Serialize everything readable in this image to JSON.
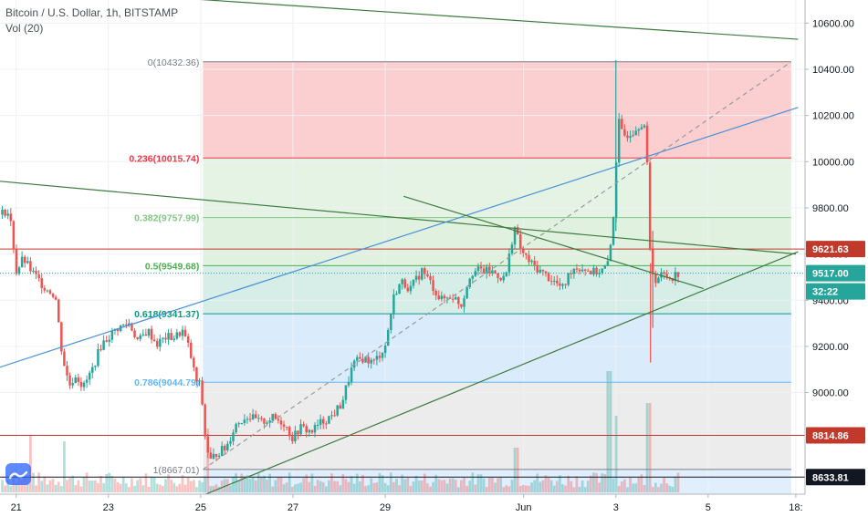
{
  "header": {
    "symbol_line": "Bitcoin / U.S. Dollar, 1h, BITSTAMP",
    "volume_line": "Vol (20)"
  },
  "icons": {
    "logo": "tradingview-cloud-icon"
  },
  "chart_data": {
    "type": "candlestick",
    "symbol": "Bitcoin / U.S. Dollar",
    "interval": "1h",
    "exchange": "BITSTAMP",
    "ylim": [
      8560,
      10700
    ],
    "y_ticks": [
      9000,
      9200,
      9400,
      9600,
      9800,
      10000,
      10200,
      10400,
      10600
    ],
    "y_tick_labels": [
      "9000.00",
      "9200.00",
      "9400.00",
      "9600.00",
      "9800.00",
      "10000.00",
      "10200.00",
      "10400.00",
      "10600.00"
    ],
    "x_labels": [
      {
        "text": "21",
        "day": 0
      },
      {
        "text": "23",
        "day": 2
      },
      {
        "text": "25",
        "day": 4
      },
      {
        "text": "27",
        "day": 6
      },
      {
        "text": "29",
        "day": 8
      },
      {
        "text": "Jun",
        "day": 11
      },
      {
        "text": "3",
        "day": 13
      },
      {
        "text": "5",
        "day": 15
      },
      {
        "text": "18:",
        "day": 16.9
      }
    ],
    "x_range_days": [
      -0.35,
      17.1
    ],
    "fibonacci": {
      "start_day": 4.05,
      "end_day": 16.8,
      "levels": [
        {
          "ratio": "0",
          "value": 10432.36,
          "label": "0(10432.36)",
          "color": "#787b86",
          "fill": "#f7a8a8"
        },
        {
          "ratio": "0.236",
          "value": 10015.74,
          "label": "0.236(10015.74)",
          "color": "#f23645",
          "fill": "#cfe9cf"
        },
        {
          "ratio": "0.382",
          "value": 9757.99,
          "label": "0.382(9757.99)",
          "color": "#81c784",
          "fill": "#c6e6c6"
        },
        {
          "ratio": "0.5",
          "value": 9549.68,
          "label": "0.5(9549.68)",
          "color": "#4caf50",
          "fill": "#b6e0d6"
        },
        {
          "ratio": "0.618",
          "value": 9341.37,
          "label": "0.618(9341.37)",
          "color": "#089981",
          "fill": "#bcdaf7"
        },
        {
          "ratio": "0.786",
          "value": 9044.79,
          "label": "0.786(9044.79)",
          "color": "#64b5f6",
          "fill": "#dcdcdc"
        },
        {
          "ratio": "1",
          "value": 8667.01,
          "label": "1(8667.01)",
          "color": "#787b86",
          "fill": "#c8e2fa"
        }
      ]
    },
    "horizontal_lines": [
      {
        "value": 9621.63,
        "label": "9621.63",
        "color": "#c0392b"
      },
      {
        "value": 8814.86,
        "label": "8814.86",
        "color": "#c0392b"
      },
      {
        "value": 8633.81,
        "label": "8633.81",
        "color": "#131722"
      }
    ],
    "last_price": {
      "value": 9517.0,
      "label": "9517.00",
      "countdown": "32:22",
      "color": "#26a69a"
    },
    "trend_lines": [
      {
        "name": "upper-descending-trendline",
        "color": "#3d7a3d",
        "points": [
          [
            -0.35,
            10760
          ],
          [
            16.95,
            10530
          ]
        ]
      },
      {
        "name": "mid-descending-trendline",
        "color": "#3d7a3d",
        "points": [
          [
            -0.35,
            9915
          ],
          [
            16.9,
            9600
          ]
        ]
      },
      {
        "name": "blue-ascending-trendline",
        "color": "#4a90d9",
        "points": [
          [
            -0.35,
            9110
          ],
          [
            16.95,
            10235
          ]
        ]
      },
      {
        "name": "lower-ascending-trendline",
        "color": "#3d7a3d",
        "points": [
          [
            3.5,
            8510
          ],
          [
            16.95,
            9610
          ]
        ]
      },
      {
        "name": "short-descending-trendline",
        "color": "#3d7a3d",
        "points": [
          [
            8.4,
            9850
          ],
          [
            14.9,
            9450
          ]
        ]
      },
      {
        "name": "fib-diagonal-dashed",
        "color": "#9a9a9a",
        "dashed": true,
        "points": [
          [
            4.05,
            8667.01
          ],
          [
            16.8,
            10432.36
          ]
        ]
      }
    ],
    "candle_anchors": [
      [
        -0.35,
        9770
      ],
      [
        -0.2,
        9790
      ],
      [
        -0.1,
        9720
      ],
      [
        0.0,
        9520
      ],
      [
        0.15,
        9580
      ],
      [
        0.35,
        9520
      ],
      [
        0.6,
        9460
      ],
      [
        0.85,
        9420
      ],
      [
        1.0,
        9160
      ],
      [
        1.15,
        9030
      ],
      [
        1.3,
        9080
      ],
      [
        1.45,
        9020
      ],
      [
        1.65,
        9100
      ],
      [
        1.85,
        9210
      ],
      [
        2.0,
        9240
      ],
      [
        2.2,
        9280
      ],
      [
        2.45,
        9300
      ],
      [
        2.65,
        9220
      ],
      [
        2.85,
        9270
      ],
      [
        3.05,
        9210
      ],
      [
        3.25,
        9240
      ],
      [
        3.45,
        9240
      ],
      [
        3.6,
        9270
      ],
      [
        3.75,
        9190
      ],
      [
        3.9,
        9050
      ],
      [
        4.0,
        9030
      ],
      [
        4.1,
        8800
      ],
      [
        4.2,
        8700
      ],
      [
        4.35,
        8740
      ],
      [
        4.55,
        8760
      ],
      [
        4.75,
        8860
      ],
      [
        5.0,
        8900
      ],
      [
        5.3,
        8870
      ],
      [
        5.55,
        8890
      ],
      [
        5.8,
        8870
      ],
      [
        6.0,
        8800
      ],
      [
        6.15,
        8850
      ],
      [
        6.4,
        8830
      ],
      [
        6.6,
        8870
      ],
      [
        6.85,
        8900
      ],
      [
        7.05,
        8950
      ],
      [
        7.3,
        9120
      ],
      [
        7.5,
        9150
      ],
      [
        7.75,
        9130
      ],
      [
        8.0,
        9200
      ],
      [
        8.2,
        9430
      ],
      [
        8.35,
        9480
      ],
      [
        8.55,
        9450
      ],
      [
        8.8,
        9530
      ],
      [
        9.0,
        9470
      ],
      [
        9.2,
        9400
      ],
      [
        9.45,
        9420
      ],
      [
        9.65,
        9380
      ],
      [
        9.85,
        9520
      ],
      [
        10.05,
        9530
      ],
      [
        10.35,
        9520
      ],
      [
        10.6,
        9490
      ],
      [
        10.8,
        9720
      ],
      [
        10.95,
        9610
      ],
      [
        11.15,
        9560
      ],
      [
        11.4,
        9520
      ],
      [
        11.6,
        9490
      ],
      [
        11.85,
        9450
      ],
      [
        12.05,
        9540
      ],
      [
        12.3,
        9540
      ],
      [
        12.5,
        9520
      ],
      [
        12.7,
        9530
      ],
      [
        12.85,
        9560
      ],
      [
        12.95,
        9780
      ],
      [
        13.05,
        10180
      ],
      [
        13.15,
        10110
      ],
      [
        13.35,
        10130
      ],
      [
        13.55,
        10170
      ],
      [
        13.65,
        10150
      ],
      [
        13.75,
        9550
      ],
      [
        13.85,
        9490
      ],
      [
        14.0,
        9510
      ],
      [
        14.2,
        9500
      ],
      [
        14.35,
        9517
      ]
    ],
    "candle_count": 241,
    "volume_spikes": [
      {
        "day": 12.85,
        "rel": 0.95
      },
      {
        "day": 13.0,
        "rel": 0.6
      },
      {
        "day": 13.7,
        "rel": 0.7
      },
      {
        "day": 0.3,
        "rel": 0.45
      },
      {
        "day": 1.05,
        "rel": 0.4
      },
      {
        "day": 4.15,
        "rel": 0.5
      },
      {
        "day": 10.85,
        "rel": 0.35
      }
    ]
  }
}
